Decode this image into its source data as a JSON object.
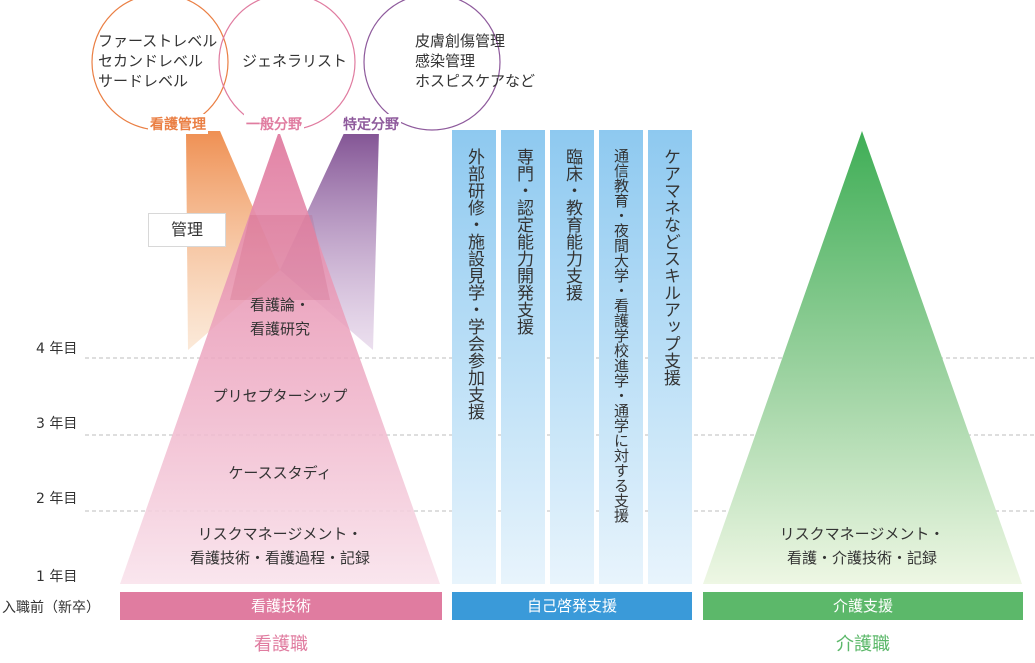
{
  "circles": [
    {
      "lines": [
        "ファーストレベル",
        "セカンドレベル",
        "サードレベル"
      ],
      "label": "看護管理",
      "color": "#ea7f44"
    },
    {
      "lines": [
        "ジェネラリスト"
      ],
      "label": "一般分野",
      "color": "#e07ca0"
    },
    {
      "lines": [
        "皮膚創傷管理",
        "感染管理",
        "ホスピスケアなど"
      ],
      "label": "特定分野",
      "color": "#8e5a9c"
    }
  ],
  "kanri_label": "管理",
  "years": [
    "4 年目",
    "3 年目",
    "2 年目",
    "1 年目",
    "入職前（新卒）"
  ],
  "nursing_levels": [
    [
      "看護論・",
      "看護研究"
    ],
    [
      "プリセプターシップ"
    ],
    [
      "ケーススタディ"
    ],
    [
      "リスクマネージメント・",
      "看護技術・看護過程・記録"
    ]
  ],
  "support_columns": [
    "外部研修・施設見学・学会参加支援",
    "専門・認定能力開発支援",
    "臨床・教育能力支援",
    "通信教育・夜間大学・看護学校進学・通学に対する支援",
    "ケアマネなどスキルアップ支援"
  ],
  "care_level": [
    "リスクマネージメント・",
    "看護・介護技術・記録"
  ],
  "bars": [
    {
      "label": "看護技術",
      "color": "#e07ca0"
    },
    {
      "label": "自己啓発支援",
      "color": "#3a9ad9"
    },
    {
      "label": "介護支援",
      "color": "#5cb86a"
    }
  ],
  "bottom_labels": [
    {
      "label": "看護職",
      "color": "#e07ca0"
    },
    {
      "label": "介護職",
      "color": "#5cb86a"
    }
  ]
}
